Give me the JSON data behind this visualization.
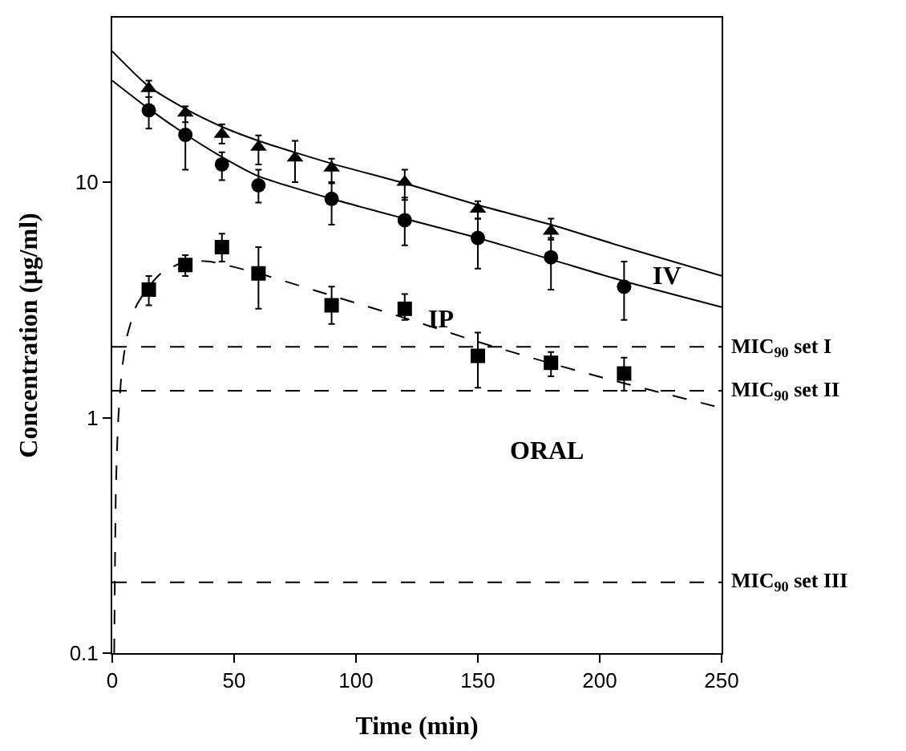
{
  "chart_data": {
    "type": "scatter",
    "xlabel": "Time (min)",
    "ylabel": "Concentration (µg/ml)",
    "series": [
      {
        "color": "#000000",
        "marker": "triangle",
        "x": [
          15,
          30,
          45,
          60,
          75,
          90,
          120,
          150,
          180
        ],
        "values": [
          25,
          19.7,
          16,
          14.1,
          12.7,
          11.5,
          10,
          7.7,
          6.2
        ],
        "errors": [
          [
            23,
            27
          ],
          [
            18,
            21
          ],
          [
            14.6,
            17.6
          ],
          [
            11.9,
            15.8
          ],
          [
            10,
            15
          ],
          [
            10,
            12.6
          ],
          [
            8.4,
            11.3
          ],
          [
            7,
            8.3
          ],
          [
            5.7,
            7
          ]
        ]
      },
      {
        "color": "#000000",
        "marker": "circle",
        "x": [
          15,
          30,
          45,
          60,
          90,
          120,
          150,
          180,
          210
        ],
        "values": [
          20.2,
          15.9,
          11.9,
          9.7,
          8.5,
          6.9,
          5.8,
          4.8,
          3.6
        ],
        "errors": [
          [
            16.9,
            23
          ],
          [
            11.3,
            19.5
          ],
          [
            10.2,
            13.4
          ],
          [
            8.2,
            11.3
          ],
          [
            6.6,
            9.9
          ],
          [
            5.4,
            8.6
          ],
          [
            4.3,
            7
          ],
          [
            3.5,
            5.8
          ],
          [
            2.6,
            4.6
          ]
        ]
      },
      {
        "color": "#000000",
        "marker": "square",
        "x": [
          15,
          30,
          45,
          60,
          90,
          120,
          150,
          180,
          210
        ],
        "values": [
          3.5,
          4.45,
          5.3,
          4.1,
          3,
          2.9,
          1.83,
          1.71,
          1.54
        ],
        "errors": [
          [
            3,
            4
          ],
          [
            4,
            4.9
          ],
          [
            4.6,
            6.05
          ],
          [
            2.9,
            5.3
          ],
          [
            2.5,
            3.6
          ],
          [
            2.6,
            3.35
          ],
          [
            1.34,
            2.3
          ],
          [
            1.5,
            1.9
          ],
          [
            1.3,
            1.8
          ]
        ]
      },
      {
        "type": "line",
        "color": "#000000",
        "marker": "none",
        "line_style": "solid",
        "x": [
          0,
          15,
          30,
          45,
          60,
          90,
          120,
          150,
          180,
          210,
          250
        ],
        "values": [
          36,
          25.5,
          20.5,
          17.2,
          15,
          12,
          9.9,
          8,
          6.6,
          5.3,
          4
        ]
      },
      {
        "type": "line",
        "color": "#000000",
        "marker": "none",
        "line_style": "solid",
        "x": [
          0,
          15,
          30,
          45,
          60,
          90,
          120,
          150,
          180,
          210,
          250
        ],
        "values": [
          27,
          20.5,
          16,
          12.8,
          10.6,
          8.5,
          7,
          5.8,
          4.7,
          3.8,
          2.95
        ]
      },
      {
        "type": "line",
        "color": "#000000",
        "marker": "none",
        "line_style": "dashed",
        "x": [
          0.8,
          1.5,
          2.5,
          4,
          6,
          10,
          15,
          20,
          30,
          40,
          60,
          90,
          120,
          150,
          180,
          210,
          250
        ],
        "values": [
          0.1,
          0.5,
          1,
          1.6,
          2.2,
          3,
          3.6,
          4.1,
          4.6,
          4.6,
          4.1,
          3.3,
          2.65,
          2.1,
          1.7,
          1.4,
          1.1
        ]
      }
    ],
    "annotations": [
      "IV",
      "IP",
      "ORAL"
    ],
    "ref_lines": [
      {
        "axis": "y",
        "value": 2,
        "label": "MIC$_{90}$ set I",
        "line_style": "dashed"
      },
      {
        "axis": "y",
        "value": 1.3,
        "label": "MIC$_{90}$ set II",
        "line_style": "dashed"
      },
      {
        "axis": "y",
        "value": 0.2,
        "label": "MIC$_{90}$ set III",
        "line_style": "dashed"
      }
    ],
    "xlim": [
      0,
      250
    ],
    "xticks": [
      0,
      50,
      100,
      150,
      200,
      250
    ],
    "ylim": [
      0.1,
      50
    ],
    "yticks": [
      0.1,
      1,
      10
    ],
    "log": "y"
  }
}
